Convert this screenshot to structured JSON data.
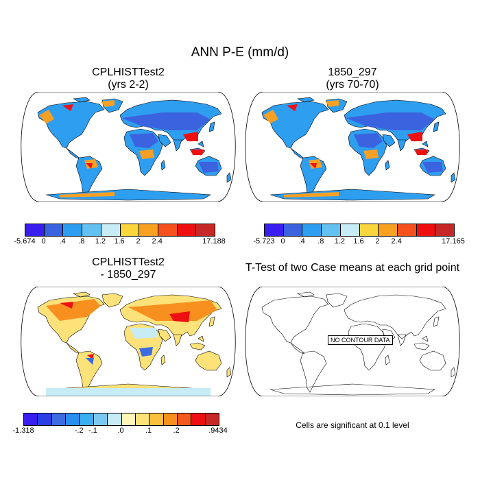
{
  "title": "ANN P-E (mm/d)",
  "panels": {
    "case1": {
      "title": "CPLHISTTest2",
      "subtitle": "(yrs 2-2)"
    },
    "case2": {
      "title": "1850_297",
      "subtitle": "(yrs 70-70)"
    },
    "diff": {
      "title": "CPLHISTTest2",
      "subtitle": "- 1850_297"
    },
    "ttest": {
      "title": "T-Test of two Case means at each grid point",
      "message": "NO CONTOUR DATA",
      "footnote": "Cells are significant at 0.1 level"
    }
  },
  "colorbars": {
    "case1": {
      "colors": [
        "#3a1ef0",
        "#3b63e0",
        "#2e9ef0",
        "#62c1f0",
        "#c8ecf5",
        "#fad63c",
        "#f8a021",
        "#f4511e",
        "#ee1010",
        "#c62828"
      ],
      "labels": [
        "-5.674",
        "0",
        ".4",
        ".8",
        "1.2",
        "1.6",
        "2",
        "2.4",
        "17.188"
      ]
    },
    "case2": {
      "colors": [
        "#3a1ef0",
        "#3b63e0",
        "#2e9ef0",
        "#62c1f0",
        "#c8ecf5",
        "#fad63c",
        "#f8a021",
        "#f4511e",
        "#ee1010",
        "#c62828"
      ],
      "labels": [
        "-5.723",
        "0",
        ".4",
        ".8",
        "1.2",
        "1.6",
        "2",
        "2.4",
        "17.165"
      ]
    },
    "diff": {
      "colors": [
        "#3a1ef0",
        "#2b3fe6",
        "#3b6de0",
        "#2a8ef0",
        "#3ab0f0",
        "#7cc8f0",
        "#c8ecf5",
        "#fff6b8",
        "#fde27a",
        "#fbc03c",
        "#f8901f",
        "#f45a1e",
        "#ee1010",
        "#c62828"
      ],
      "labels": [
        "-1.318",
        "-.2",
        "-.1",
        ".0",
        ".1",
        ".2",
        ".9434"
      ]
    }
  }
}
